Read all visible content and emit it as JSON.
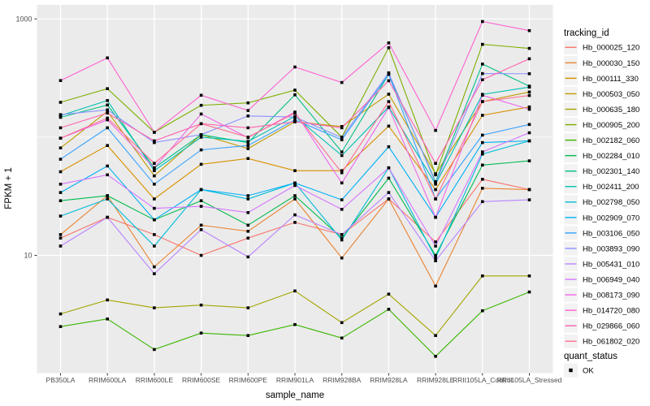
{
  "chart_data": {
    "type": "line",
    "title": "",
    "xlabel": "sample_name",
    "ylabel": "FPKM + 1",
    "y_scale": "log10",
    "ylim": [
      1.05,
      1300
    ],
    "grid": "on",
    "legend_position": "right",
    "y_ticks": [
      {
        "label": "1000",
        "value": 1000
      },
      {
        "label": "10",
        "value": 10
      }
    ],
    "minor_gridline_values": [
      100
    ],
    "categories": [
      "PB350LA",
      "RRIM600LA",
      "RRIM600LE",
      "RRIM600SE",
      "RRIM600PE",
      "RRIM901LA",
      "RRIM928BA",
      "RRIM928LA",
      "RRIM928LE",
      "RRII105LA_Control",
      "RRII105LA_Stressed"
    ],
    "series": [
      {
        "name": "Hb_000025_120",
        "color": "#F8766D",
        "values": [
          14,
          21,
          15,
          10,
          14,
          19,
          15,
          30,
          13,
          44,
          36
        ]
      },
      {
        "name": "Hb_000030_150",
        "color": "#EA8331",
        "values": [
          15,
          32,
          8,
          18,
          16,
          30,
          9.5,
          30,
          5.5,
          37,
          36
        ]
      },
      {
        "name": "Hb_000111_330",
        "color": "#D89000",
        "values": [
          51,
          85,
          30,
          59,
          66,
          52,
          52,
          124,
          36,
          153,
          180
        ]
      },
      {
        "name": "Hb_000503_050",
        "color": "#C09B00",
        "values": [
          81,
          165,
          47,
          105,
          80,
          135,
          123,
          231,
          49,
          200,
          241
        ]
      },
      {
        "name": "Hb_000635_180",
        "color": "#A3A500",
        "values": [
          3.2,
          4.2,
          3.6,
          3.8,
          3.6,
          5,
          2.7,
          4.7,
          2.1,
          6.7,
          6.7
        ]
      },
      {
        "name": "Hb_000905_200",
        "color": "#7CAE00",
        "values": [
          197,
          257,
          110,
          186,
          195,
          250,
          100,
          570,
          48,
          610,
          563
        ]
      },
      {
        "name": "Hb_002182_060",
        "color": "#39B600",
        "values": [
          2.5,
          2.9,
          1.6,
          2.2,
          2.1,
          2.6,
          2,
          3.5,
          1.4,
          3.4,
          4.9
        ]
      },
      {
        "name": "Hb_002284_010",
        "color": "#00BB4E",
        "values": [
          29,
          32,
          20,
          29,
          18,
          32,
          14,
          45,
          10,
          58,
          63
        ]
      },
      {
        "name": "Hb_002301_140",
        "color": "#00C087",
        "values": [
          147,
          187,
          55,
          105,
          90,
          228,
          75,
          340,
          42,
          415,
          270
        ]
      },
      {
        "name": "Hb_002411_200",
        "color": "#00C0B2",
        "values": [
          152,
          204,
          52,
          100,
          92,
          150,
          70,
          180,
          40,
          230,
          265
        ]
      },
      {
        "name": "Hb_002798_050",
        "color": "#00BCD8",
        "values": [
          21.5,
          30,
          12,
          36,
          30,
          41,
          13.5,
          55,
          9.5,
          72,
          93
        ]
      },
      {
        "name": "Hb_002909_070",
        "color": "#00B0F6",
        "values": [
          34,
          57,
          20,
          36,
          32,
          41,
          29.5,
          83,
          21,
          90,
          93
        ]
      },
      {
        "name": "Hb_003106_050",
        "color": "#35A2FF",
        "values": [
          65,
          120,
          40,
          78,
          85,
          140,
          95,
          340,
          30,
          104,
          128
        ]
      },
      {
        "name": "Hb_003893_090",
        "color": "#8B93FF",
        "values": [
          155,
          170,
          90,
          105,
          151,
          148,
          99,
          350,
          41,
          345,
          344
        ]
      },
      {
        "name": "Hb_005431_010",
        "color": "#B983FF",
        "values": [
          12,
          21,
          7,
          16.5,
          9.7,
          22,
          15,
          34,
          9,
          28.5,
          29.5
        ]
      },
      {
        "name": "Hb_006949_040",
        "color": "#D575FE",
        "values": [
          40,
          48,
          25,
          26,
          23,
          39,
          24.5,
          55,
          12,
          75,
          109
        ]
      },
      {
        "name": "Hb_008173_090",
        "color": "#EF67EB",
        "values": [
          98,
          140,
          55,
          157,
          99,
          163,
          41,
          178,
          21,
          226,
          172
        ]
      },
      {
        "name": "Hb_014720_080",
        "color": "#FD61D1",
        "values": [
          301,
          468,
          110,
          226,
          168,
          392,
          290,
          627,
          114,
          950,
          796
        ]
      },
      {
        "name": "Hb_029866_060",
        "color": "#FF62B0",
        "values": [
          120,
          160,
          93,
          130,
          120,
          135,
          120,
          300,
          60,
          306,
          460
        ]
      },
      {
        "name": "Hb_061802_020",
        "color": "#FF6C91",
        "values": [
          98,
          145,
          60,
          130,
          100,
          160,
          50,
          200,
          30,
          200,
          225
        ]
      }
    ],
    "legends": {
      "tracking": {
        "title": "tracking_id"
      },
      "quant": {
        "title": "quant_status",
        "items": [
          {
            "label": "OK",
            "marker": "filled-square",
            "color": "#000000"
          }
        ]
      }
    },
    "colors": {
      "panel_bg": "#EBEBEB",
      "gridline": "#FFFFFF",
      "tick_text": "#4D4D4D",
      "tick_mark": "#333333",
      "point": "#000000",
      "legend_key_bg": "#F2F2F2"
    }
  }
}
